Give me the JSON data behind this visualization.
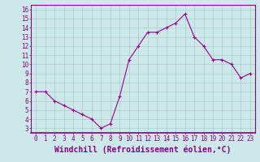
{
  "x": [
    0,
    1,
    2,
    3,
    4,
    5,
    6,
    7,
    8,
    9,
    10,
    11,
    12,
    13,
    14,
    15,
    16,
    17,
    18,
    19,
    20,
    21,
    22,
    23
  ],
  "y": [
    7,
    7,
    6,
    5.5,
    5,
    4.5,
    4,
    3,
    3.5,
    6.5,
    10.5,
    12,
    13.5,
    13.5,
    14,
    14.5,
    15.5,
    13,
    12,
    10.5,
    10.5,
    10,
    8.5,
    9
  ],
  "line_color": "#990099",
  "marker_color": "#990099",
  "bg_color": "#cce8e8",
  "grid_color": "#aacccc",
  "xlabel": "Windchill (Refroidissement éolien,°C)",
  "xlim": [
    -0.5,
    23.5
  ],
  "ylim": [
    2.5,
    16.5
  ],
  "xticks": [
    0,
    1,
    2,
    3,
    4,
    5,
    6,
    7,
    8,
    9,
    10,
    11,
    12,
    13,
    14,
    15,
    16,
    17,
    18,
    19,
    20,
    21,
    22,
    23
  ],
  "yticks": [
    3,
    4,
    5,
    6,
    7,
    8,
    9,
    10,
    11,
    12,
    13,
    14,
    15,
    16
  ],
  "tick_fontsize": 5.5,
  "xlabel_fontsize": 7.0,
  "axes_color": "#880088",
  "spine_color": "#880088",
  "border_color": "#880088"
}
